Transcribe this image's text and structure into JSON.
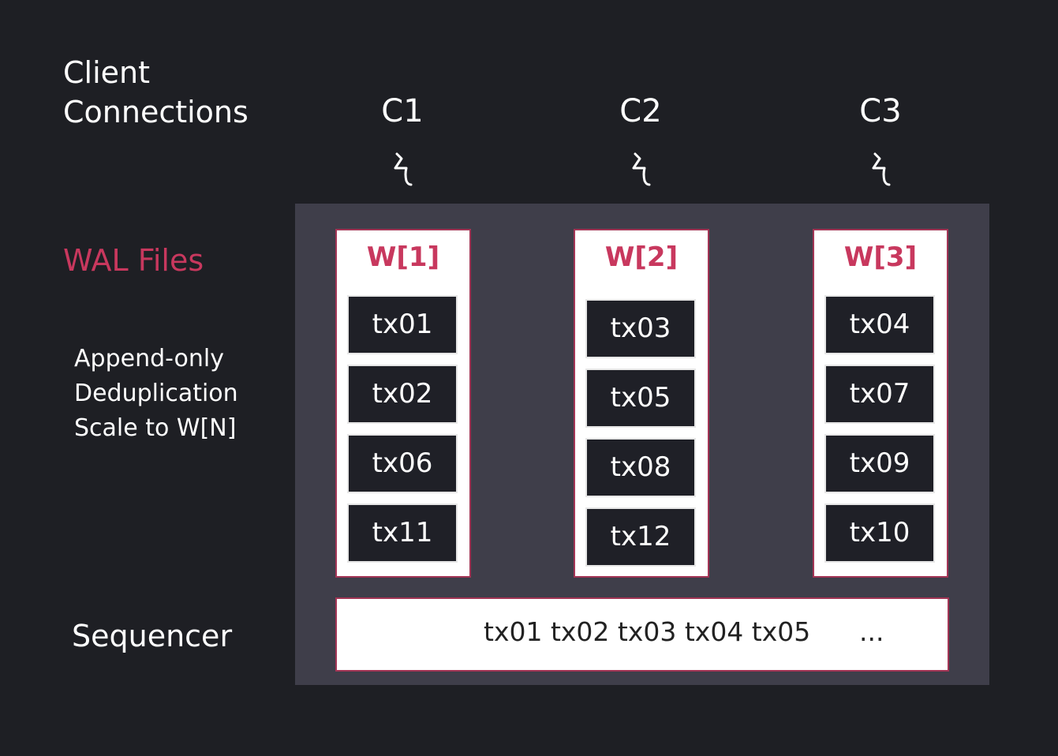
{
  "labels": {
    "client_line1": "Client",
    "client_line2": "Connections",
    "wal_files": "WAL Files",
    "features": [
      "Append-only",
      "Deduplication",
      "Scale to  W[N]"
    ],
    "sequencer": "Sequencer"
  },
  "connections": [
    {
      "label": "C1",
      "icon": "lightning-icon"
    },
    {
      "label": "C2",
      "icon": "lightning-icon"
    },
    {
      "label": "C3",
      "icon": "lightning-icon"
    }
  ],
  "wal_files": [
    {
      "title": "W[1]",
      "txs": [
        "tx01",
        "tx02",
        "tx06",
        "tx11"
      ]
    },
    {
      "title": "W[2]",
      "txs": [
        "tx03",
        "tx05",
        "tx08",
        "tx12"
      ]
    },
    {
      "title": "W[3]",
      "txs": [
        "tx04",
        "tx07",
        "tx09",
        "tx10"
      ]
    }
  ],
  "sequencer": {
    "sequence": "tx01 tx02 tx03 tx04 tx05",
    "ellipsis": "..."
  },
  "colors": {
    "background": "#1e1f24",
    "panel": "#3f3e4a",
    "accent": "#c8385e",
    "tx_box": "#1f2027"
  }
}
